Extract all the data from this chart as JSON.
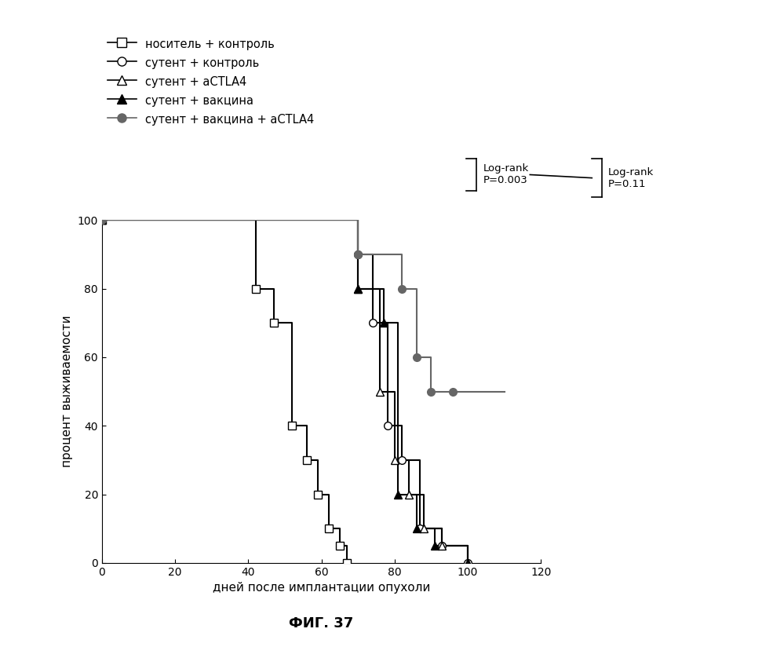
{
  "xlabel": "дней после имплантации опухоли",
  "ylabel": "процент выживаемости",
  "fig_label": "ФИГ. 37",
  "xlim": [
    0,
    120
  ],
  "ylim": [
    0,
    100
  ],
  "xticks": [
    0,
    20,
    40,
    60,
    80,
    100,
    120
  ],
  "yticks": [
    0,
    20,
    40,
    60,
    80,
    100
  ],
  "legend_labels": [
    "носитель + контроль",
    "сутент + контроль",
    "сутент + aCTLA4",
    "сутент + вакцина",
    "сутент + вакцина + aCTLA4"
  ],
  "curves": {
    "vehicle_control": {
      "x": [
        0,
        42,
        42,
        47,
        47,
        52,
        52,
        56,
        56,
        59,
        59,
        62,
        62,
        65,
        65,
        67,
        67
      ],
      "y": [
        100,
        100,
        80,
        80,
        70,
        70,
        40,
        40,
        30,
        30,
        20,
        20,
        10,
        10,
        5,
        5,
        0
      ],
      "marker": "s",
      "filled": false
    },
    "sutent_control": {
      "x": [
        0,
        70,
        70,
        74,
        74,
        78,
        78,
        82,
        82,
        87,
        87,
        93,
        93,
        100,
        100
      ],
      "y": [
        100,
        100,
        90,
        90,
        70,
        70,
        40,
        40,
        30,
        30,
        10,
        10,
        5,
        5,
        0
      ],
      "marker": "o",
      "filled": false
    },
    "sutent_actla4": {
      "x": [
        0,
        70,
        70,
        76,
        76,
        80,
        80,
        84,
        84,
        88,
        88,
        93,
        93,
        100,
        100
      ],
      "y": [
        100,
        100,
        80,
        80,
        50,
        50,
        30,
        30,
        20,
        20,
        10,
        10,
        5,
        5,
        0
      ],
      "marker": "^",
      "filled": false
    },
    "sutent_vaccine": {
      "x": [
        0,
        70,
        70,
        77,
        77,
        81,
        81,
        86,
        86,
        91,
        91,
        100,
        100
      ],
      "y": [
        100,
        100,
        80,
        80,
        70,
        70,
        20,
        20,
        10,
        10,
        5,
        5,
        0
      ],
      "marker": "^",
      "filled": true
    },
    "sutent_vaccine_actla4": {
      "x": [
        0,
        70,
        70,
        82,
        82,
        86,
        86,
        90,
        90,
        96,
        96,
        110
      ],
      "y": [
        100,
        100,
        90,
        90,
        80,
        80,
        60,
        60,
        50,
        50,
        50,
        50
      ],
      "marker": "o",
      "filled": true,
      "gray": true
    }
  },
  "color_black": "#000000",
  "color_gray": "#666666",
  "linewidth": 1.5,
  "markersize": 7,
  "annotation_logrank1": "Log-rank\nP=0.003",
  "annotation_logrank2": "Log-rank\nP=0.11"
}
